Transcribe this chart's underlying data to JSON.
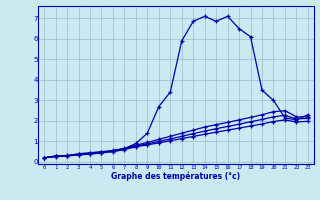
{
  "xlabel": "Graphe des températures (°c)",
  "bg_color": "#cce8f0",
  "line_color": "#0000aa",
  "grid_color": "#99bbcc",
  "xlim": [
    -0.5,
    23.5
  ],
  "ylim": [
    -0.1,
    7.6
  ],
  "yticks": [
    0,
    1,
    2,
    3,
    4,
    5,
    6,
    7
  ],
  "xticks": [
    0,
    1,
    2,
    3,
    4,
    5,
    6,
    7,
    8,
    9,
    10,
    11,
    12,
    13,
    14,
    15,
    16,
    17,
    18,
    19,
    20,
    21,
    22,
    23
  ],
  "line1_x": [
    0,
    1,
    2,
    3,
    4,
    5,
    6,
    7,
    8,
    9,
    10,
    11,
    12,
    13,
    14,
    15,
    16,
    17,
    18,
    19,
    20,
    21,
    22,
    23
  ],
  "line1_y": [
    0.2,
    0.3,
    0.3,
    0.4,
    0.45,
    0.5,
    0.55,
    0.65,
    0.9,
    1.4,
    2.7,
    3.4,
    5.9,
    6.85,
    7.1,
    6.85,
    7.1,
    6.5,
    6.1,
    3.5,
    3.0,
    2.15,
    2.05,
    2.3
  ],
  "line2_x": [
    0,
    1,
    2,
    3,
    4,
    5,
    6,
    7,
    8,
    9,
    10,
    11,
    12,
    13,
    14,
    15,
    16,
    17,
    18,
    19,
    20,
    21,
    22,
    23
  ],
  "line2_y": [
    0.2,
    0.28,
    0.32,
    0.38,
    0.42,
    0.48,
    0.56,
    0.66,
    0.82,
    0.95,
    1.1,
    1.25,
    1.4,
    1.55,
    1.7,
    1.82,
    1.93,
    2.05,
    2.17,
    2.3,
    2.45,
    2.5,
    2.2,
    2.2
  ],
  "line3_x": [
    0,
    1,
    2,
    3,
    4,
    5,
    6,
    7,
    8,
    9,
    10,
    11,
    12,
    13,
    14,
    15,
    16,
    17,
    18,
    19,
    20,
    21,
    22,
    23
  ],
  "line3_y": [
    0.2,
    0.27,
    0.3,
    0.36,
    0.4,
    0.46,
    0.53,
    0.63,
    0.78,
    0.88,
    1.0,
    1.12,
    1.25,
    1.38,
    1.5,
    1.62,
    1.73,
    1.84,
    1.96,
    2.07,
    2.2,
    2.27,
    2.1,
    2.12
  ],
  "line4_x": [
    0,
    1,
    2,
    3,
    4,
    5,
    6,
    7,
    8,
    9,
    10,
    11,
    12,
    13,
    14,
    15,
    16,
    17,
    18,
    19,
    20,
    21,
    22,
    23
  ],
  "line4_y": [
    0.2,
    0.26,
    0.29,
    0.34,
    0.38,
    0.44,
    0.5,
    0.6,
    0.74,
    0.83,
    0.93,
    1.03,
    1.14,
    1.24,
    1.35,
    1.45,
    1.55,
    1.65,
    1.75,
    1.85,
    1.97,
    2.05,
    1.95,
    1.98
  ]
}
